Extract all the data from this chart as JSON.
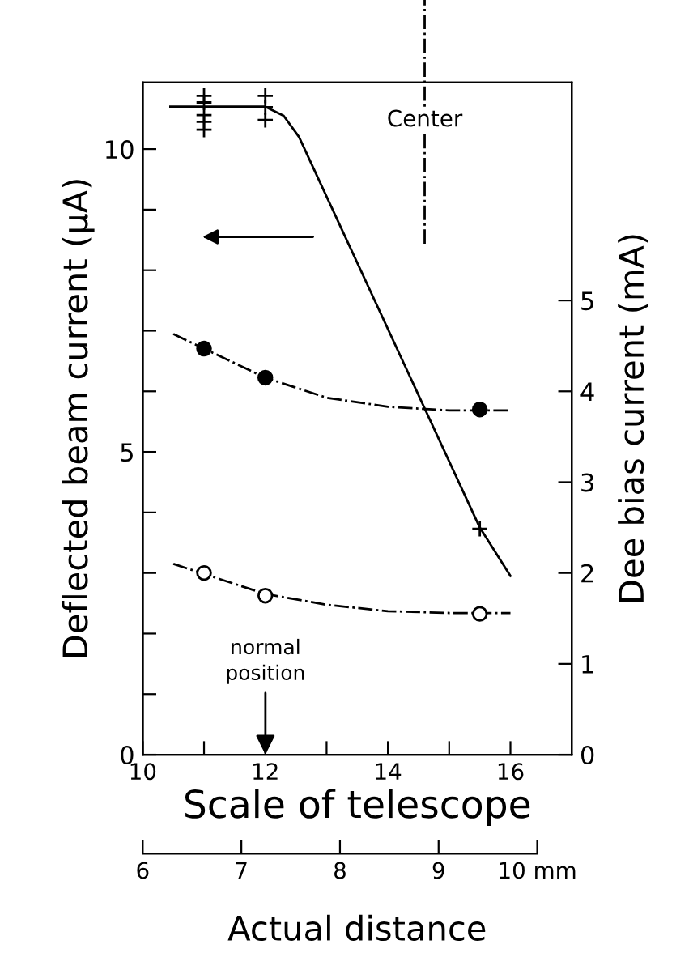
{
  "chart_data": {
    "type": "line",
    "xlabel": "Scale of telescope",
    "ylabel": "Deflected beam current (μA)",
    "y2label": "Dee bias current (mA)",
    "x2label": "Actual distance",
    "xlim": [
      10,
      17
    ],
    "xticks": [
      10,
      {
        "value": 11,
        "label": null
      },
      12,
      {
        "value": 13,
        "label": null
      },
      14,
      {
        "value": 15,
        "label": null
      },
      16
    ],
    "ylim": [
      0,
      11.1
    ],
    "yticks": [
      0,
      {
        "value": 1,
        "label": null
      },
      {
        "value": 2,
        "label": null
      },
      {
        "value": 3,
        "label": null
      },
      {
        "value": 4,
        "label": null
      },
      5,
      {
        "value": 6,
        "label": null
      },
      {
        "value": 7,
        "label": null
      },
      {
        "value": 8,
        "label": null
      },
      {
        "value": 9,
        "label": null
      },
      10
    ],
    "y2lim": [
      0,
      7.4
    ],
    "y2ticks": [
      0,
      1,
      2,
      3,
      4,
      5
    ],
    "x2lim": [
      6,
      10.35
    ],
    "x2ticks": [
      6,
      7,
      8,
      9,
      {
        "value": 10,
        "label": "10 mm"
      }
    ],
    "grid": false,
    "series": [
      {
        "color": "#000000",
        "line_style": "solid",
        "marker": "none",
        "x": [
          10.45,
          12,
          12.3,
          12.55,
          15.5,
          16
        ],
        "values": [
          10.7,
          10.7,
          10.55,
          10.2,
          3.75,
          2.95
        ]
      },
      {
        "type": "scatter",
        "color": "#000000",
        "marker": "cross",
        "x": [
          11,
          11,
          11,
          11,
          11,
          12,
          12,
          12,
          15.5
        ],
        "values": [
          10.88,
          10.77,
          10.56,
          10.45,
          10.32,
          10.88,
          10.69,
          10.48,
          3.73
        ]
      },
      {
        "axis": "y2",
        "color": "#000000",
        "line_style": "dashdot",
        "marker": "none",
        "x": [
          10.5,
          11,
          12,
          13,
          14,
          15,
          16
        ],
        "values": [
          4.63,
          4.47,
          4.15,
          3.93,
          3.83,
          3.79,
          3.79
        ]
      },
      {
        "type": "scatter",
        "axis": "y2",
        "color": "#000000",
        "marker": "circle",
        "x": [
          11,
          12,
          15.5
        ],
        "values": [
          4.47,
          4.15,
          3.8
        ]
      },
      {
        "axis": "y2",
        "color": "#000000",
        "line_style": "dashdot",
        "marker": "none",
        "x": [
          10.5,
          11,
          12,
          13,
          14,
          15,
          16
        ],
        "values": [
          2.1,
          1.99,
          1.77,
          1.65,
          1.58,
          1.56,
          1.56
        ]
      },
      {
        "type": "scatter",
        "axis": "y2",
        "color": "#ffffff",
        "marker": "circle",
        "x": [
          11,
          12,
          15.5
        ],
        "values": [
          2.0,
          1.75,
          1.55
        ]
      }
    ],
    "ref_lines": [
      {
        "axis": "x",
        "value": 14.6,
        "label": "Center",
        "color": "#000000",
        "line_style": "dashdot"
      }
    ],
    "annotations": [
      "normal\nposition"
    ]
  }
}
